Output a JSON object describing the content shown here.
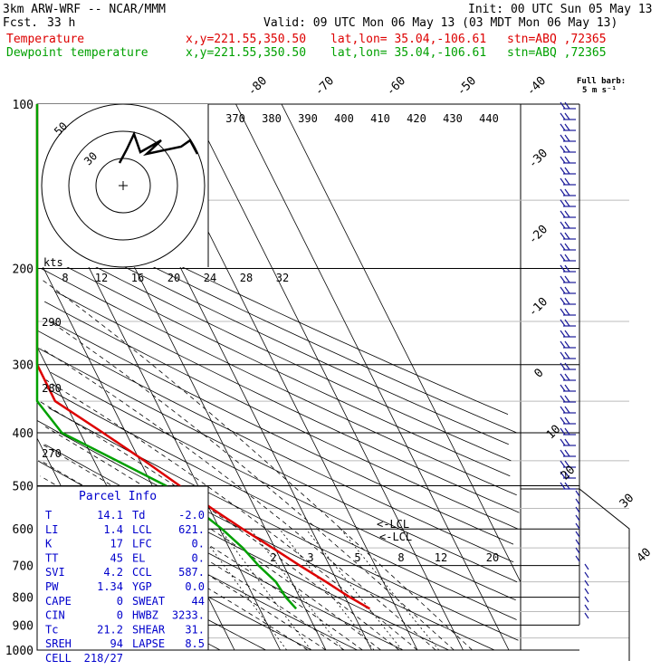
{
  "header": {
    "model": "3km ARW-WRF -- NCAR/MMM",
    "init": "Init: 00 UTC Sun 05 May 13",
    "fcst_label": "Fcst.",
    "fcst_value": "33 h",
    "valid": "Valid: 09 UTC Mon 06 May 13 (03 MDT Mon 06 May 13)",
    "temperature_label": "Temperature",
    "dewpoint_label": "Dewpoint temperature",
    "xy": "x,y=221.55,350.50",
    "latlon": "lat,lon= 35.04,-106.61",
    "station": "stn=ABQ ,72365"
  },
  "barb_legend": {
    "line1": "Full barb:",
    "line2": "5 m s⁻¹"
  },
  "hodograph": {
    "units": "kts",
    "ring_labels": [
      "50",
      "30"
    ]
  },
  "parcel": {
    "title": "Parcel Info",
    "rows": [
      [
        "T",
        "14.1",
        "Td",
        "-2.0"
      ],
      [
        "LI",
        "1.4",
        "LCL",
        "621."
      ],
      [
        "K",
        "17",
        "LFC",
        "0."
      ],
      [
        "TT",
        "45",
        "EL",
        "0."
      ],
      [
        "SVI",
        "4.2",
        "CCL",
        "587."
      ],
      [
        "PW",
        "1.34",
        "YGP",
        "0.0"
      ],
      [
        "CAPE",
        "0",
        "SWEAT",
        "44"
      ],
      [
        "CIN",
        "0",
        "HWBZ",
        "3233."
      ],
      [
        "Tc",
        "21.2",
        "SHEAR",
        "31."
      ],
      [
        "SREH",
        "94",
        "LAPSE",
        "8.5"
      ],
      [
        "CELL",
        "218/27",
        "",
        ""
      ]
    ]
  },
  "lcl_labels": [
    "<-LCL",
    "<-LCL"
  ],
  "chart_data": {
    "type": "line",
    "title": "",
    "y_axis": "Pressure (hPa), log scale",
    "pressure_ticks": [
      100,
      200,
      300,
      400,
      500,
      600,
      700,
      800,
      900,
      1000
    ],
    "isotherm_labels": [
      -80,
      -70,
      -60,
      -50,
      -40,
      -30,
      -20,
      -10,
      0,
      10,
      20,
      30,
      40
    ],
    "theta_labels_top": [
      370,
      380,
      390,
      400,
      410,
      420,
      430,
      440
    ],
    "theta_labels_left": [
      290,
      280,
      270
    ],
    "mixing_ratio_labels_200hPa": [
      8,
      12,
      16,
      20,
      24,
      28,
      32
    ],
    "mixing_ratio_labels_700hPa": [
      2,
      3,
      5,
      8,
      12,
      20
    ],
    "series": [
      {
        "name": "Temperature",
        "color": "#dd0000",
        "points": [
          {
            "p": 840,
            "t": 14.1
          },
          {
            "p": 800,
            "t": 11.0
          },
          {
            "p": 750,
            "t": 7.5
          },
          {
            "p": 700,
            "t": 3.5
          },
          {
            "p": 650,
            "t": -0.5
          },
          {
            "p": 600,
            "t": -5.0
          },
          {
            "p": 550,
            "t": -9.5
          },
          {
            "p": 500,
            "t": -14.0
          },
          {
            "p": 450,
            "t": -19.0
          },
          {
            "p": 400,
            "t": -25.0
          },
          {
            "p": 350,
            "t": -32.0
          },
          {
            "p": 300,
            "t": -40.0
          },
          {
            "p": 250,
            "t": -49.0
          },
          {
            "p": 210,
            "t": -55.5
          },
          {
            "p": 200,
            "t": -55.0
          },
          {
            "p": 180,
            "t": -54.0
          },
          {
            "p": 150,
            "t": -56.0
          },
          {
            "p": 130,
            "t": -59.0
          },
          {
            "p": 110,
            "t": -63.0
          },
          {
            "p": 100,
            "t": -66.0
          }
        ]
      },
      {
        "name": "Dewpoint temperature",
        "color": "#00a000",
        "points": [
          {
            "p": 840,
            "t": -2.0
          },
          {
            "p": 800,
            "t": -3.0
          },
          {
            "p": 750,
            "t": -3.5
          },
          {
            "p": 700,
            "t": -5.5
          },
          {
            "p": 650,
            "t": -7.0
          },
          {
            "p": 600,
            "t": -9.5
          },
          {
            "p": 550,
            "t": -13.0
          },
          {
            "p": 500,
            "t": -17.0
          },
          {
            "p": 450,
            "t": -25.0
          },
          {
            "p": 400,
            "t": -34.0
          },
          {
            "p": 350,
            "t": -41.0
          },
          {
            "p": 300,
            "t": -50.0
          },
          {
            "p": 250,
            "t": -61.0
          },
          {
            "p": 200,
            "t": -71.0
          },
          {
            "p": 180,
            "t": -75.0
          },
          {
            "p": 150,
            "t": -79.0
          },
          {
            "p": 130,
            "t": -83.0
          },
          {
            "p": 115,
            "t": -86.0
          },
          {
            "p": 100,
            "t": -88.0
          }
        ]
      }
    ]
  }
}
